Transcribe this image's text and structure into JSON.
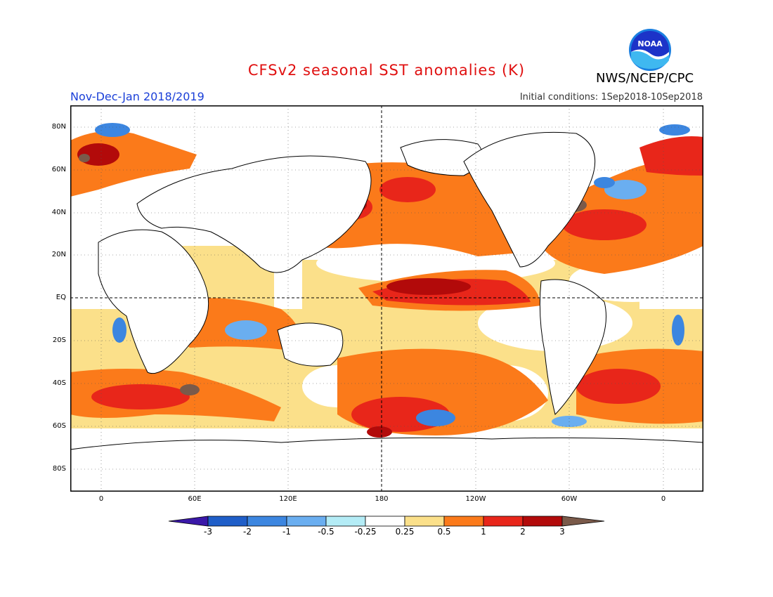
{
  "header": {
    "title": "CFSv2 seasonal SST anomalies (K)",
    "period": "Nov-Dec-Jan 2018/2019",
    "initial_conditions": "Initial conditions: 1Sep2018-10Sep2018",
    "agency": "NWS/NCEP/CPC",
    "logo_text": "NOAA"
  },
  "map": {
    "lat_labels": [
      "80N",
      "60N",
      "40N",
      "20N",
      "EQ",
      "20S",
      "40S",
      "60S",
      "80S"
    ],
    "lon_labels": [
      "0",
      "60E",
      "120E",
      "180",
      "120W",
      "60W",
      "0"
    ]
  },
  "colorbar": {
    "labels": [
      "-3",
      "-2",
      "-1",
      "-0.5",
      "-0.25",
      "0.25",
      "0.5",
      "1",
      "2",
      "3"
    ],
    "colors": [
      "#3a18a8",
      "#1f5ec8",
      "#3c86e0",
      "#6aaef0",
      "#b4ecf6",
      "#ffffff",
      "#fbe08a",
      "#fb7a1a",
      "#e8261a",
      "#b20a0a",
      "#7a5a4a"
    ]
  }
}
